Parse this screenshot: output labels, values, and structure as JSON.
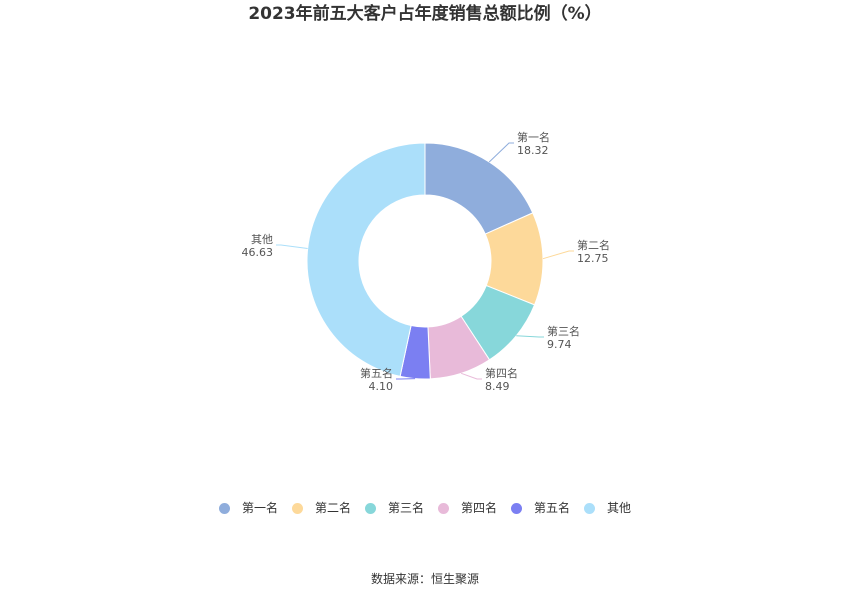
{
  "chart_data": {
    "type": "pie",
    "title": "2023年前五大客户占年度销售总额比例（%）",
    "categories": [
      "第一名",
      "第二名",
      "第三名",
      "第四名",
      "第五名",
      "其他"
    ],
    "values": [
      18.32,
      12.75,
      9.74,
      8.49,
      4.1,
      46.63
    ],
    "value_labels": [
      "18.32",
      "12.75",
      "9.74",
      "8.49",
      "4.10",
      "46.63"
    ],
    "colors": [
      "#8faddc",
      "#fdd99a",
      "#87d7da",
      "#e8bad9",
      "#7b7ff2",
      "#abdffa"
    ],
    "donut": true,
    "legend_position": "bottom"
  },
  "source": "数据来源：恒生聚源"
}
